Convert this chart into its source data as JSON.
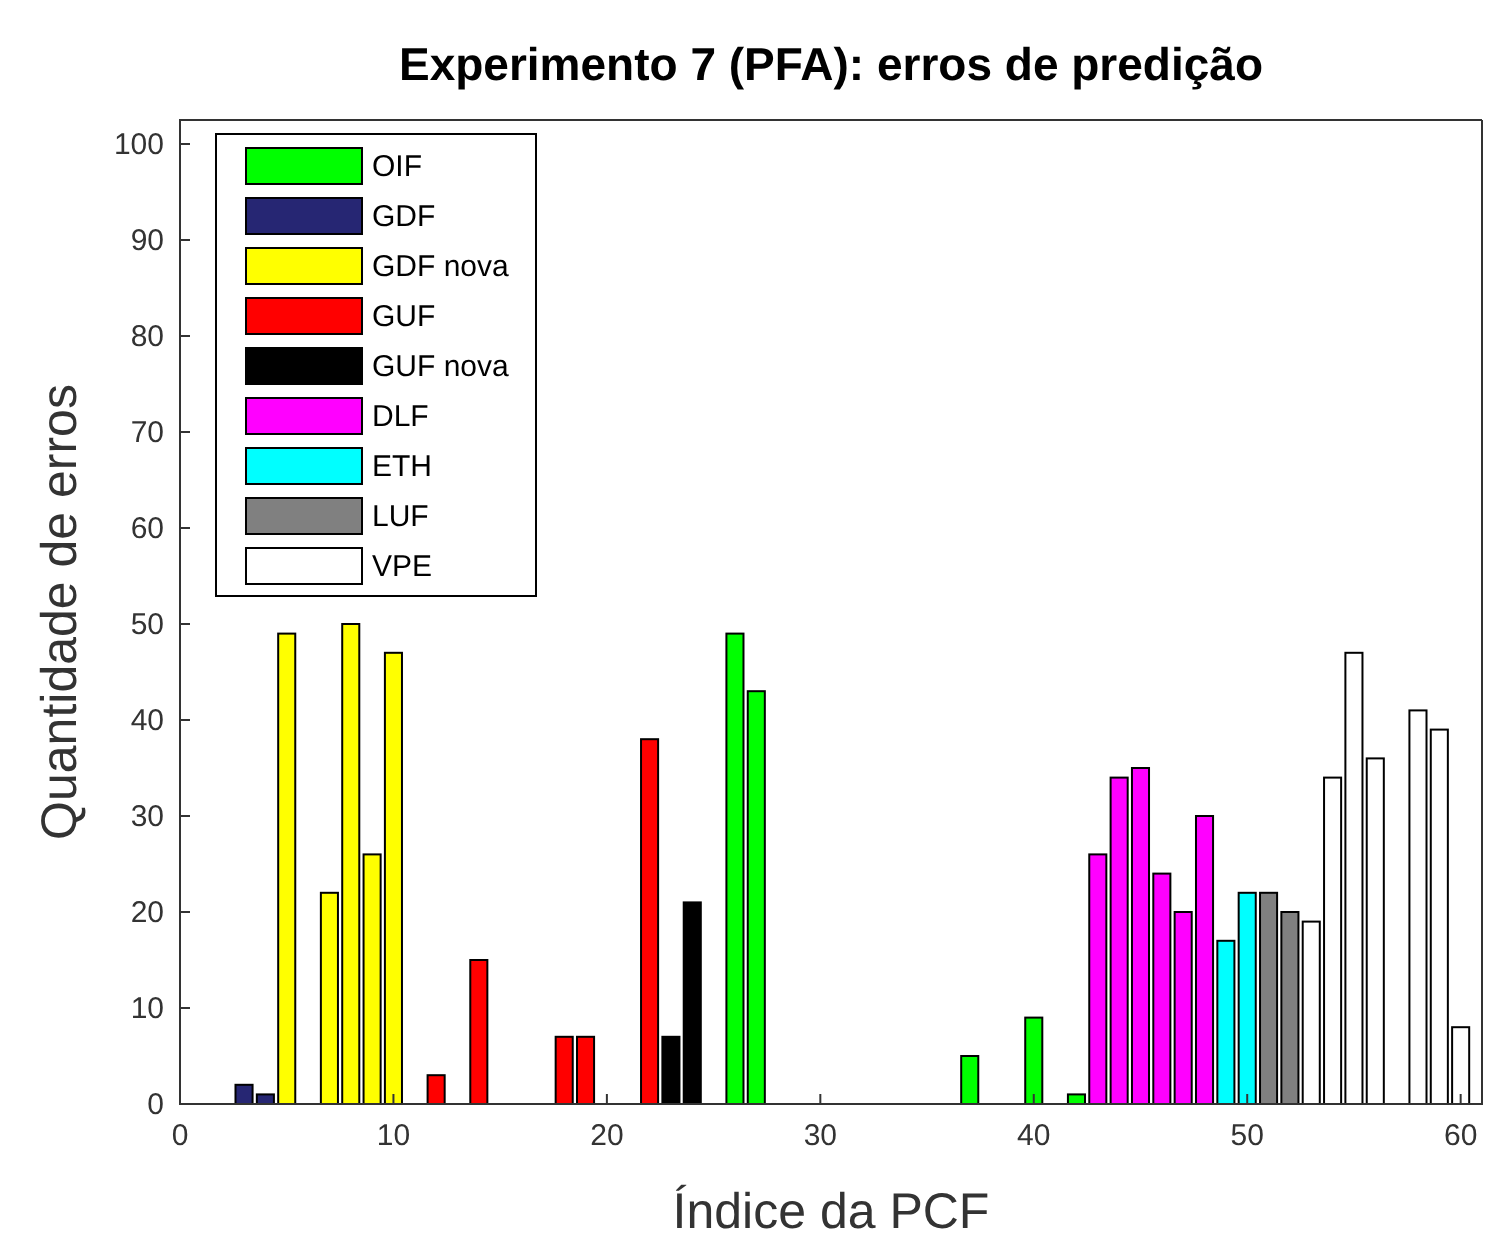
{
  "chart_data": {
    "type": "bar",
    "title": "Experimento 7 (PFA): erros de predição",
    "xlabel": "Índice da PCF",
    "ylabel": "Quantidade de erros",
    "xlim": [
      0,
      61
    ],
    "xticks": [
      0,
      10,
      20,
      30,
      40,
      50,
      60
    ],
    "ylim": [
      0,
      102.5
    ],
    "yticks": [
      0,
      10,
      20,
      30,
      40,
      50,
      60,
      70,
      80,
      90,
      100
    ],
    "grid": false,
    "legend": "top left",
    "series": [
      {
        "name": "OIF",
        "color": "#00ff00",
        "x": [
          26,
          27,
          37,
          40,
          42
        ],
        "values": [
          49,
          43,
          5,
          9,
          1
        ]
      },
      {
        "name": "GDF",
        "color": "#262673",
        "x": [
          3,
          4
        ],
        "values": [
          2,
          1
        ]
      },
      {
        "name": "GDF nova",
        "color": "#ffff00",
        "x": [
          5,
          7,
          8,
          9,
          10
        ],
        "values": [
          49,
          22,
          50,
          26,
          47
        ]
      },
      {
        "name": "GUF",
        "color": "#ff0000",
        "x": [
          12,
          14,
          18,
          19,
          22
        ],
        "values": [
          3,
          15,
          7,
          7,
          38
        ]
      },
      {
        "name": "GUF nova",
        "color": "#000000",
        "x": [
          23,
          24
        ],
        "values": [
          7,
          21
        ]
      },
      {
        "name": "DLF",
        "color": "#ff00ff",
        "x": [
          43,
          44,
          45,
          46,
          47,
          48
        ],
        "values": [
          26,
          34,
          35,
          24,
          20,
          30
        ]
      },
      {
        "name": "ETH",
        "color": "#00ffff",
        "x": [
          49,
          50
        ],
        "values": [
          17,
          22
        ]
      },
      {
        "name": "LUF",
        "color": "#808080",
        "x": [
          51,
          52
        ],
        "values": [
          22,
          20
        ]
      },
      {
        "name": "VPE",
        "color": "#ffffff",
        "x": [
          53,
          54,
          55,
          56,
          58,
          59,
          60
        ],
        "values": [
          19,
          34,
          47,
          36,
          41,
          39,
          8
        ]
      }
    ]
  }
}
